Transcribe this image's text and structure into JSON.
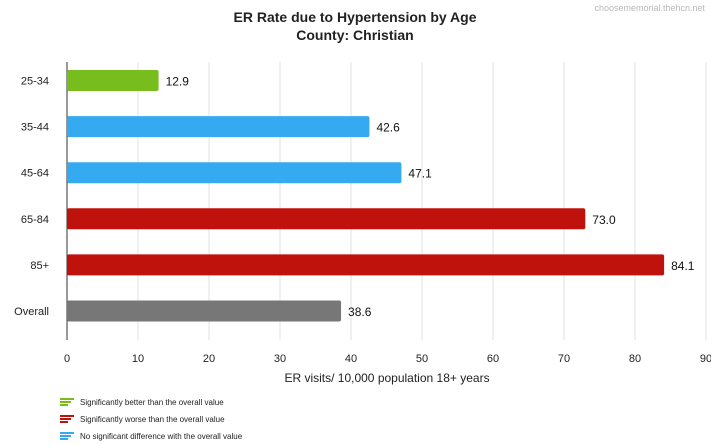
{
  "watermark": "choosememorial.thehcn.net",
  "chart_data": {
    "type": "bar",
    "orientation": "horizontal",
    "title": "ER Rate due to Hypertension by Age",
    "subtitle": "County: Christian",
    "xlabel": "ER visits/ 10,000 population 18+ years",
    "ylabel": "",
    "xlim": [
      0,
      90
    ],
    "xticks": [
      0,
      10,
      20,
      30,
      40,
      50,
      60,
      70,
      80,
      90
    ],
    "grid": true,
    "legend_position": "bottom-left",
    "categories": [
      "25-34",
      "35-44",
      "45-64",
      "65-84",
      "85+",
      "Overall"
    ],
    "values": [
      12.9,
      42.6,
      47.1,
      73.0,
      84.1,
      38.6
    ],
    "value_labels": [
      "12.9",
      "42.6",
      "47.1",
      "73.0",
      "84.1",
      "38.6"
    ],
    "status": [
      "better",
      "none",
      "none",
      "worse",
      "worse",
      "overall"
    ],
    "colors": {
      "better": "#76bd1d",
      "worse": "#c0120c",
      "none": "#35aaf0",
      "overall": "#777777",
      "grid": "#e2e2e2"
    },
    "legend": [
      {
        "status": "better",
        "label": "Significantly better than the overall value"
      },
      {
        "status": "worse",
        "label": "Significantly worse than the overall value"
      },
      {
        "status": "none",
        "label": "No significant difference with the overall value"
      }
    ]
  }
}
